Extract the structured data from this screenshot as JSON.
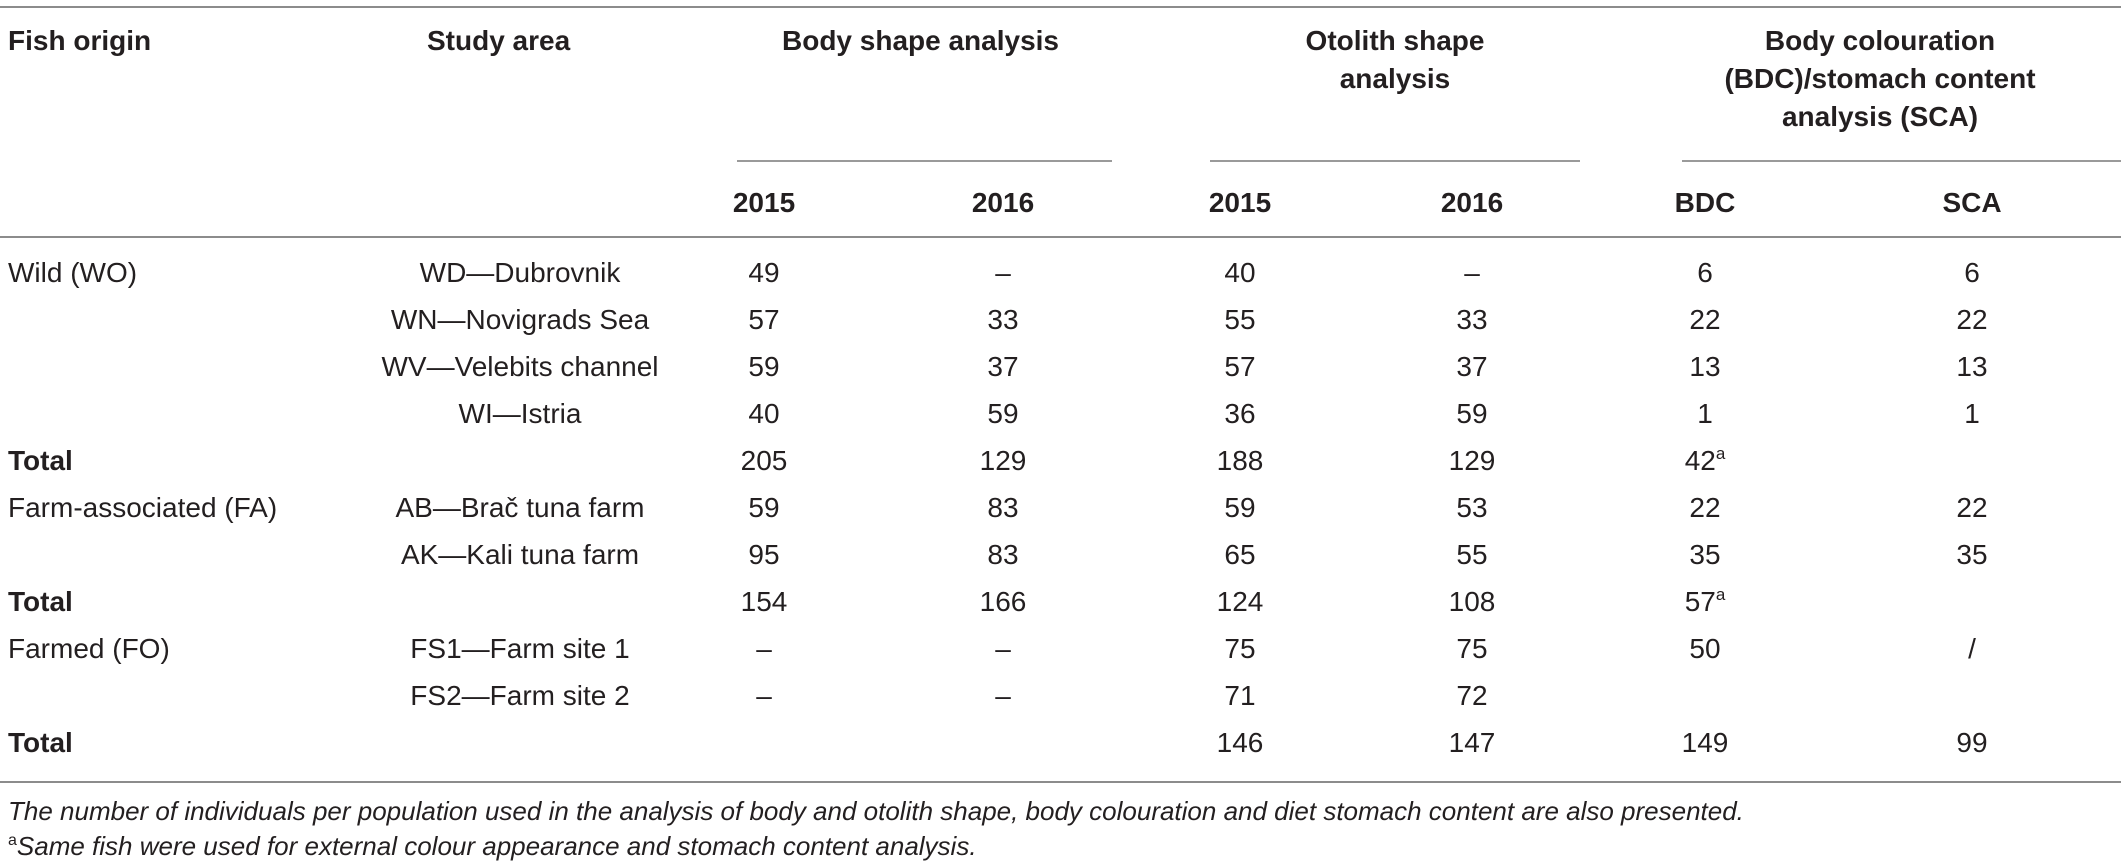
{
  "headers": {
    "fish_origin": "Fish origin",
    "study_area": "Study area",
    "body_shape": "Body shape analysis",
    "otolith_line1": "Otolith shape",
    "otolith_line2": "analysis",
    "bdc_line1": "Body colouration",
    "bdc_line2": "(BDC)/stomach content",
    "bdc_line3": "analysis (SCA)",
    "body_2015": "2015",
    "body_2016": "2016",
    "oto_2015": "2015",
    "oto_2016": "2016",
    "bdc": "BDC",
    "sca": "SCA"
  },
  "rows": [
    {
      "origin": "Wild (WO)",
      "area": "WD—Dubrovnik",
      "b15": "49",
      "b16": "–",
      "o15": "40",
      "o16": "–",
      "bdc": "6",
      "bdc_sup": "",
      "sca": "6"
    },
    {
      "origin": "",
      "area": "WN—Novigrads Sea",
      "b15": "57",
      "b16": "33",
      "o15": "55",
      "o16": "33",
      "bdc": "22",
      "bdc_sup": "",
      "sca": "22"
    },
    {
      "origin": "",
      "area": "WV—Velebits channel",
      "b15": "59",
      "b16": "37",
      "o15": "57",
      "o16": "37",
      "bdc": "13",
      "bdc_sup": "",
      "sca": "13"
    },
    {
      "origin": "",
      "area": "WI—Istria",
      "b15": "40",
      "b16": "59",
      "o15": "36",
      "o16": "59",
      "bdc": "1",
      "bdc_sup": "",
      "sca": "1"
    },
    {
      "origin": "Total",
      "area": "",
      "b15": "205",
      "b16": "129",
      "o15": "188",
      "o16": "129",
      "bdc": "42",
      "bdc_sup": "a",
      "sca": ""
    },
    {
      "origin": "Farm-associated (FA)",
      "area": "AB—Brač tuna farm",
      "b15": "59",
      "b16": "83",
      "o15": "59",
      "o16": "53",
      "bdc": "22",
      "bdc_sup": "",
      "sca": "22"
    },
    {
      "origin": "",
      "area": "AK—Kali tuna farm",
      "b15": "95",
      "b16": "83",
      "o15": "65",
      "o16": "55",
      "bdc": "35",
      "bdc_sup": "",
      "sca": "35"
    },
    {
      "origin": "Total",
      "area": "",
      "b15": "154",
      "b16": "166",
      "o15": "124",
      "o16": "108",
      "bdc": "57",
      "bdc_sup": "a",
      "sca": ""
    },
    {
      "origin": "Farmed (FO)",
      "area": "FS1—Farm site 1",
      "b15": "–",
      "b16": "–",
      "o15": "75",
      "o16": "75",
      "bdc": "50",
      "bdc_sup": "",
      "sca": "/"
    },
    {
      "origin": "",
      "area": "FS2—Farm site 2",
      "b15": "–",
      "b16": "–",
      "o15": "71",
      "o16": "72",
      "bdc": "",
      "bdc_sup": "",
      "sca": ""
    },
    {
      "origin": "Total",
      "area": "",
      "b15": "",
      "b16": "",
      "o15": "146",
      "o16": "147",
      "bdc": "149",
      "bdc_sup": "",
      "sca": "99"
    }
  ],
  "footnotes": {
    "caption": "The number of individuals per population used in the analysis of body and otolith shape, body colouration and diet stomach content are also presented.",
    "note_marker": "a",
    "note_text": "Same fish were used for external colour appearance and stomach content analysis."
  }
}
